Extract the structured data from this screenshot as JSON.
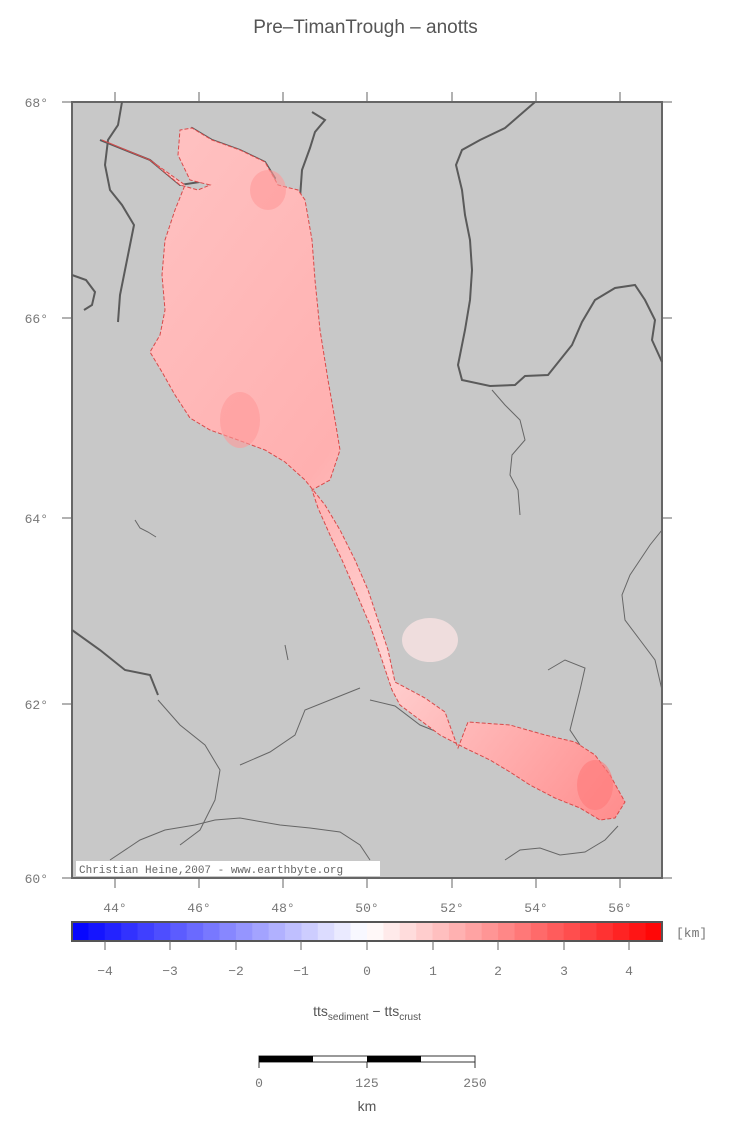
{
  "title": "Pre–TimanTrough – anotts",
  "map": {
    "lat_ticks": [
      "68°",
      "66°",
      "64°",
      "62°",
      "60°"
    ],
    "lon_ticks": [
      "44°",
      "46°",
      "48°",
      "50°",
      "52°",
      "54°",
      "56°"
    ],
    "credit": "Christian Heine,2007 - www.earthbyte.org",
    "background_color": "#c8c8c8",
    "region_color": "#ffb3b3"
  },
  "colorbar": {
    "unit": "[km]",
    "ticks": [
      "−4",
      "−3",
      "−2",
      "−1",
      "0",
      "1",
      "2",
      "3",
      "4"
    ],
    "range": [
      -4.5,
      4.5
    ],
    "label_main_1": "tts",
    "label_sub_1": "sediment",
    "label_sep": " − ",
    "label_main_2": "tts",
    "label_sub_2": "crust"
  },
  "scalebar": {
    "ticks": [
      "0",
      "125",
      "250"
    ],
    "unit": "km"
  }
}
